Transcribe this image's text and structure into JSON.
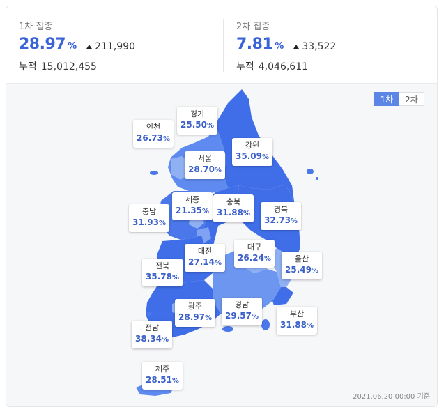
{
  "dose1": {
    "label": "1차 접종",
    "percent": "28.97",
    "unit": "%",
    "delta": "211,990",
    "cum_label": "누적",
    "cum_value": "15,012,455"
  },
  "dose2": {
    "label": "2차 접종",
    "percent": "7.81",
    "unit": "%",
    "delta": "33,522",
    "cum_label": "누적",
    "cum_value": "4,046,611"
  },
  "toggle": {
    "first": "1차",
    "second": "2차",
    "selected": "1차"
  },
  "regions": {
    "incheon": {
      "name": "인천",
      "value": "26.73"
    },
    "gyeonggi": {
      "name": "경기",
      "value": "25.50"
    },
    "seoul": {
      "name": "서울",
      "value": "28.70"
    },
    "gangwon": {
      "name": "강원",
      "value": "35.09"
    },
    "chungnam": {
      "name": "충남",
      "value": "31.93"
    },
    "sejong": {
      "name": "세종",
      "value": "21.35"
    },
    "chungbuk": {
      "name": "충북",
      "value": "31.88"
    },
    "gyeongbuk": {
      "name": "경북",
      "value": "32.73"
    },
    "daejeon": {
      "name": "대전",
      "value": "27.14"
    },
    "daegu": {
      "name": "대구",
      "value": "26.24"
    },
    "jeonbuk": {
      "name": "전북",
      "value": "35.78"
    },
    "ulsan": {
      "name": "울산",
      "value": "25.49"
    },
    "gwangju": {
      "name": "광주",
      "value": "28.97"
    },
    "gyeongnam": {
      "name": "경남",
      "value": "29.57"
    },
    "busan": {
      "name": "부산",
      "value": "31.88"
    },
    "jeonnam": {
      "name": "전남",
      "value": "38.34"
    },
    "jeju": {
      "name": "제주",
      "value": "28.51"
    }
  },
  "pct_unit": "%",
  "colors": {
    "accent": "#3b63d9",
    "dark": "#3f6ee8",
    "medium": "#5f8bf0",
    "light": "#8fb0f3"
  },
  "footer": "2021.06.20 00:00 기준"
}
